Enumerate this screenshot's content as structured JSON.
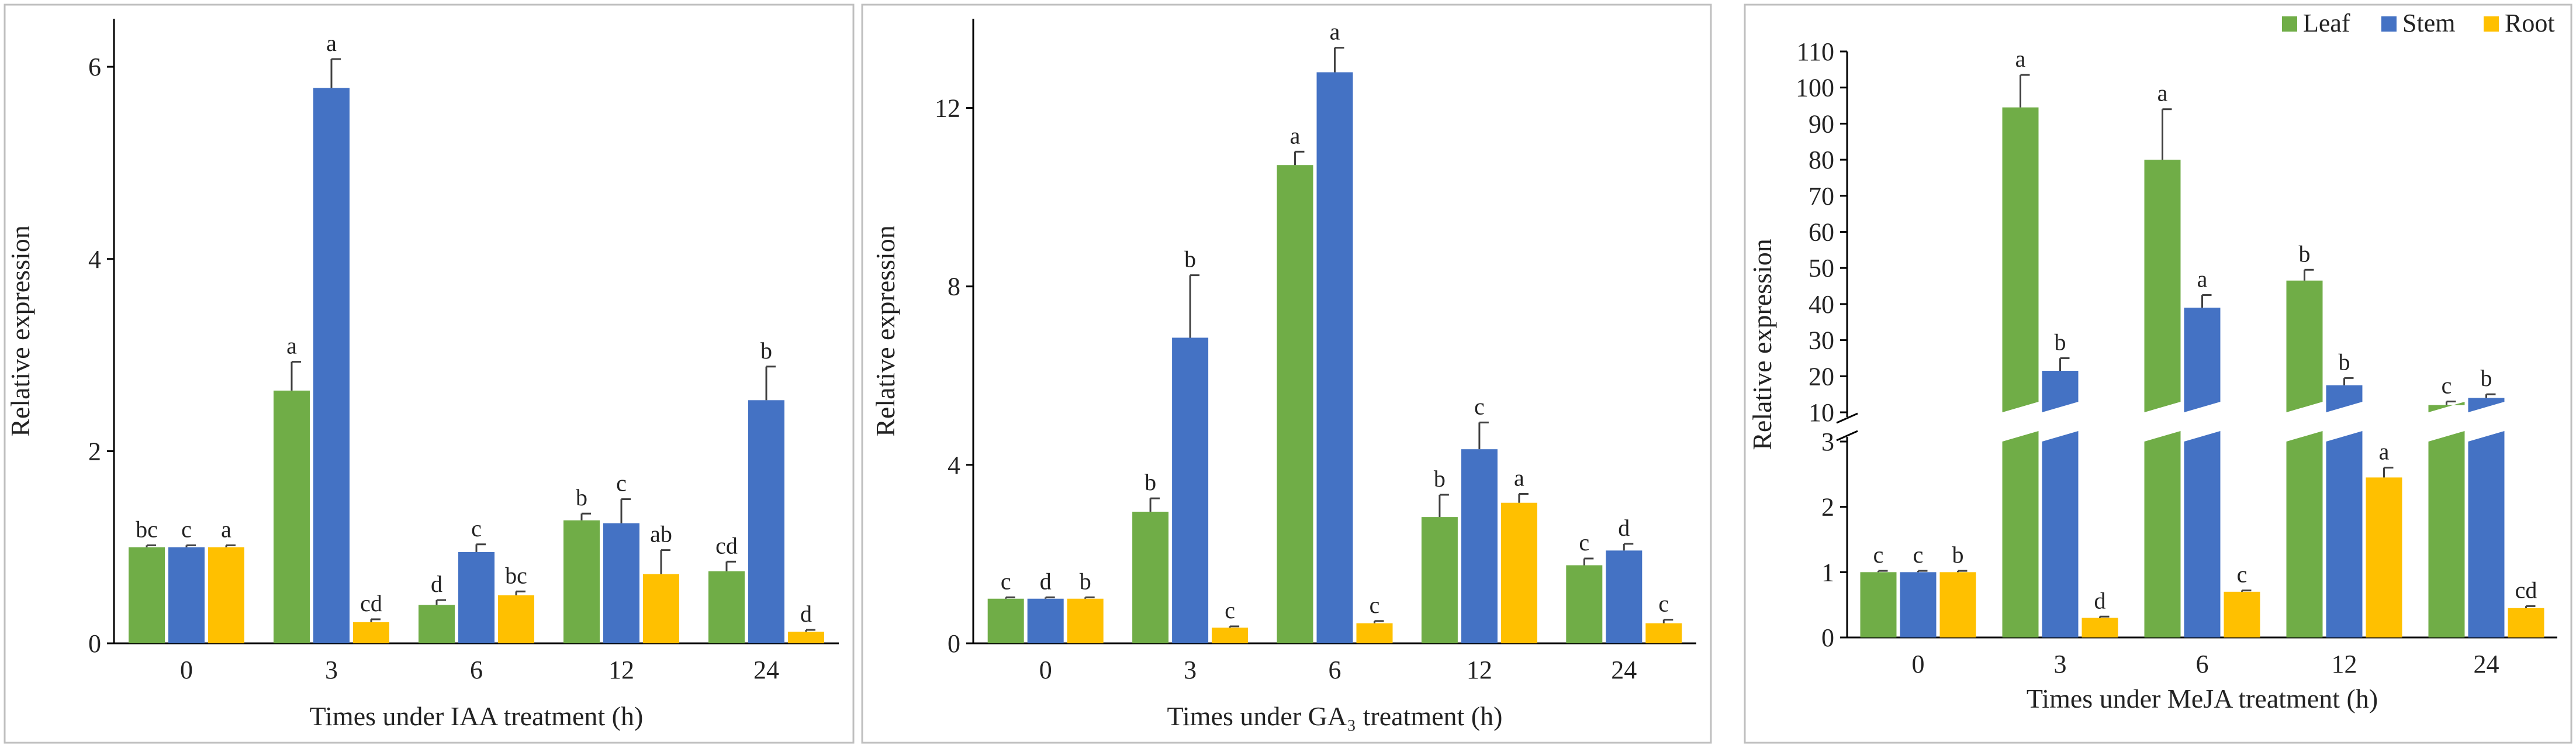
{
  "colors": {
    "leaf": "#70AD47",
    "stem": "#4472C4",
    "root": "#FFC000"
  },
  "legend": {
    "labels": [
      "Leaf",
      "Stem",
      "Root"
    ]
  },
  "chart_data": [
    {
      "type": "bar",
      "title": "",
      "categories": [
        "0",
        "3",
        "6",
        "12",
        "24"
      ],
      "xlabel": "Times under IAA treatment (h)",
      "ylabel": "Relative expression",
      "ylim": [
        0,
        6.5
      ],
      "yticks": [
        "0",
        "2",
        "4",
        "6"
      ],
      "series": [
        {
          "name": "Leaf",
          "values": [
            1.0,
            2.63,
            0.4,
            1.28,
            0.75
          ],
          "errors": [
            0.02,
            0.3,
            0.05,
            0.07,
            0.1
          ],
          "letters": [
            "bc",
            "a",
            "d",
            "b",
            "cd"
          ]
        },
        {
          "name": "Stem",
          "values": [
            1.0,
            5.78,
            0.95,
            1.25,
            2.53
          ],
          "errors": [
            0.02,
            0.3,
            0.08,
            0.25,
            0.35
          ],
          "letters": [
            "c",
            "a",
            "c",
            "c",
            "b"
          ]
        },
        {
          "name": "Root",
          "values": [
            1.0,
            0.22,
            0.5,
            0.72,
            0.12
          ],
          "errors": [
            0.02,
            0.03,
            0.04,
            0.25,
            0.02
          ],
          "letters": [
            "a",
            "cd",
            "bc",
            "ab",
            "d"
          ]
        }
      ]
    },
    {
      "type": "bar",
      "title": "",
      "categories": [
        "0",
        "3",
        "6",
        "12",
        "24"
      ],
      "xlabel": "Times under GA₃ treatment (h)",
      "ylabel": "Relative expression",
      "ylim": [
        0,
        14
      ],
      "yticks": [
        "0",
        "4",
        "8",
        "12"
      ],
      "series": [
        {
          "name": "Leaf",
          "values": [
            1.0,
            2.95,
            10.72,
            2.83,
            1.75
          ],
          "errors": [
            0.03,
            0.3,
            0.3,
            0.5,
            0.15
          ],
          "letters": [
            "c",
            "b",
            "a",
            "b",
            "c"
          ]
        },
        {
          "name": "Stem",
          "values": [
            1.0,
            6.85,
            12.8,
            4.35,
            2.08
          ],
          "errors": [
            0.03,
            1.4,
            0.55,
            0.6,
            0.15
          ],
          "letters": [
            "d",
            "b",
            "a",
            "c",
            "d"
          ]
        },
        {
          "name": "Root",
          "values": [
            1.0,
            0.35,
            0.45,
            3.15,
            0.45
          ],
          "errors": [
            0.03,
            0.03,
            0.05,
            0.2,
            0.08
          ],
          "letters": [
            "b",
            "c",
            "c",
            "a",
            "c"
          ]
        }
      ]
    },
    {
      "type": "bar",
      "title": "",
      "categories": [
        "0",
        "3",
        "6",
        "12",
        "24"
      ],
      "xlabel": "Times under MeJA treatment (h)",
      "ylabel": "Relative expression",
      "axis_break": true,
      "ylim_lower": [
        0,
        3
      ],
      "ylim_upper": [
        10,
        110
      ],
      "yticks_lower": [
        "0",
        "1",
        "2",
        "3"
      ],
      "yticks_upper": [
        "10",
        "20",
        "30",
        "40",
        "50",
        "60",
        "70",
        "80",
        "90",
        "100",
        "110"
      ],
      "series": [
        {
          "name": "Leaf",
          "values": [
            1.0,
            94.5,
            80.0,
            46.5,
            12.0
          ],
          "errors": [
            0.02,
            9.0,
            14.0,
            3.0,
            1.0
          ],
          "letters": [
            "c",
            "a",
            "a",
            "b",
            "c"
          ]
        },
        {
          "name": "Stem",
          "values": [
            1.0,
            21.5,
            39.0,
            17.5,
            14.0
          ],
          "errors": [
            0.02,
            3.5,
            3.5,
            2.0,
            1.0
          ],
          "letters": [
            "c",
            "b",
            "a",
            "b",
            "b"
          ]
        },
        {
          "name": "Root",
          "values": [
            1.0,
            0.3,
            0.7,
            2.45,
            0.45
          ],
          "errors": [
            0.02,
            0.02,
            0.02,
            0.15,
            0.03
          ],
          "letters": [
            "b",
            "d",
            "c",
            "a",
            "cd"
          ]
        }
      ]
    }
  ]
}
